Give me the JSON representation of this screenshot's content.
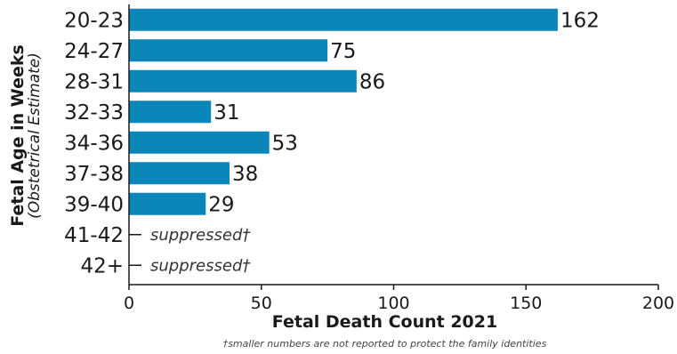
{
  "chart_data": {
    "type": "bar",
    "orientation": "horizontal",
    "categories": [
      "20-23",
      "24-27",
      "28-31",
      "32-33",
      "34-36",
      "37-38",
      "39-40",
      "41-42",
      "42+"
    ],
    "values": [
      162,
      75,
      86,
      31,
      53,
      38,
      29,
      null,
      null
    ],
    "value_labels": [
      "162",
      "75",
      "86",
      "31",
      "53",
      "38",
      "29",
      "suppressed†",
      "suppressed†"
    ],
    "xlabel": "Fetal Death Count 2021",
    "ylabel": "Fetal Age in Weeks",
    "ylabel_sub": "(Obstetrical Estimate)",
    "xlim": [
      0,
      200
    ],
    "xticks": [
      0,
      50,
      100,
      150,
      200
    ],
    "grid": false,
    "bar_color": "#0a86b8",
    "footnote": "†smaller numbers are not reported to protect the family identities"
  }
}
